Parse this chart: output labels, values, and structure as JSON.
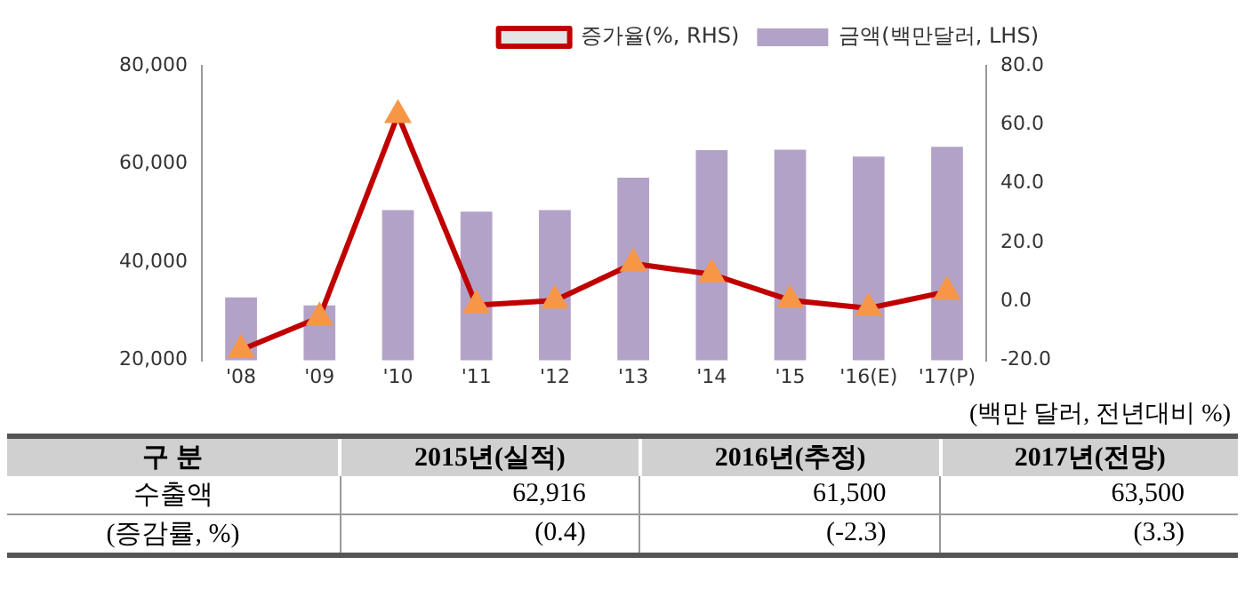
{
  "chart_data": [
    {
      "type": "bar",
      "categories": [
        "'08",
        "'09",
        "'10",
        "'11",
        "'12",
        "'13",
        "'14",
        "'15",
        "'16(E)",
        "'17(P)"
      ],
      "series": [
        {
          "name": "금액(백만달러, LHS)",
          "type": "bar",
          "axis": "y",
          "color": "#b3a2c7",
          "values": [
            32800,
            31200,
            50600,
            50300,
            50600,
            57200,
            62800,
            62900,
            61500,
            63500
          ]
        },
        {
          "name": "증가율(%, RHS)",
          "type": "line",
          "axis": "y2",
          "color": "#c00000",
          "values": [
            -16.4,
            -5.4,
            63.3,
            -1.3,
            0.3,
            12.8,
            9.2,
            0.4,
            -2.3,
            3.3
          ]
        }
      ],
      "ylim": [
        20000,
        80000
      ],
      "yticks": [
        {
          "value": 20000,
          "label": "20,000"
        },
        {
          "value": 40000,
          "label": "40,000"
        },
        {
          "value": 60000,
          "label": "60,000"
        },
        {
          "value": 80000,
          "label": "80,000"
        }
      ],
      "y2lim": [
        -20,
        80
      ],
      "y2ticks": [
        {
          "value": -20,
          "label": "-20.0"
        },
        {
          "value": 0,
          "label": "0.0"
        },
        {
          "value": 20,
          "label": "20.0"
        },
        {
          "value": 40,
          "label": "40.0"
        },
        {
          "value": 60,
          "label": "60.0"
        },
        {
          "value": 80,
          "label": "80.0"
        }
      ],
      "grid": false,
      "legend": "top right",
      "marker": "triangle",
      "line_style": "solid"
    },
    {
      "type": "other",
      "annotations": [
        "(백만 달러, 전년대비 %)"
      ],
      "ylabel": "구 분",
      "categories": [
        "2015년(실적)",
        "2016년(추정)",
        "2017년(전망)"
      ],
      "y_categories": [
        "수출액",
        "(증감률, %)"
      ],
      "cell_labels": [
        [
          "62,916",
          "61,500",
          "63,500"
        ],
        [
          "(0.4)",
          "(-2.3)",
          "(3.3)"
        ]
      ]
    }
  ]
}
